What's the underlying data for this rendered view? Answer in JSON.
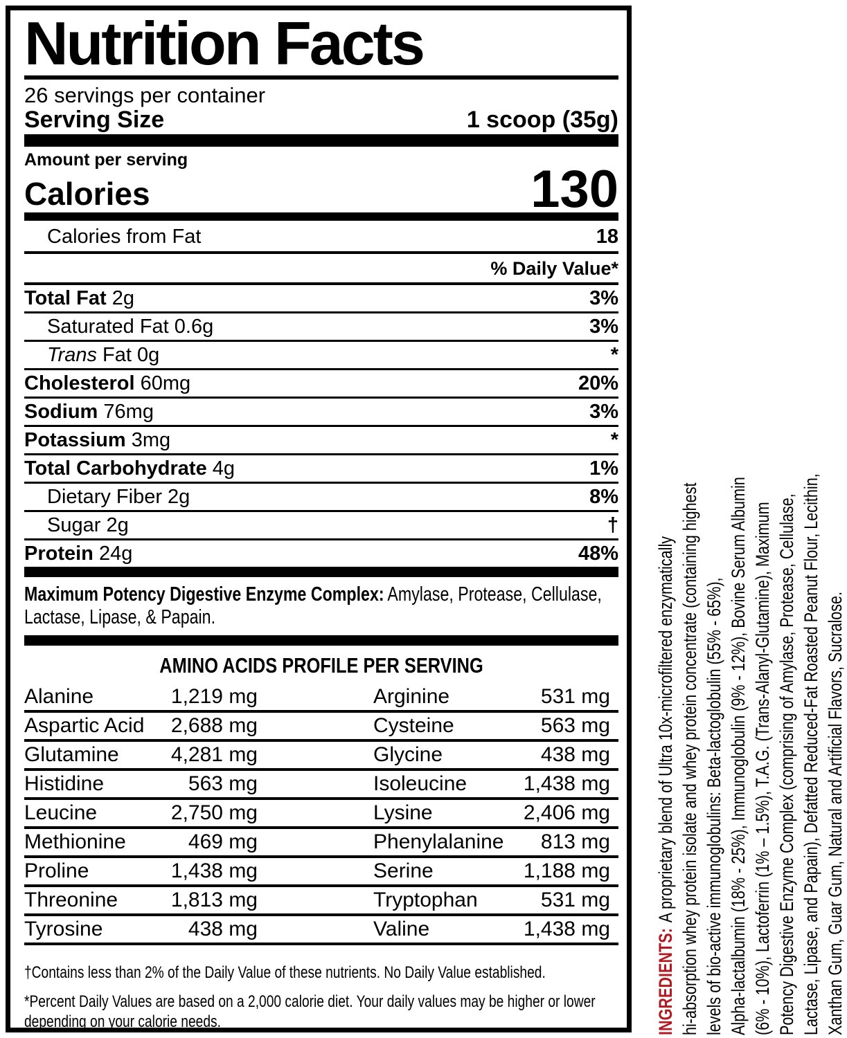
{
  "header": {
    "title": "Nutrition Facts",
    "servings": "26 servings per container",
    "serving_size_label": "Serving Size",
    "serving_size_value": "1 scoop (35g)"
  },
  "calories": {
    "amount_label": "Amount per serving",
    "label": "Calories",
    "value": "130",
    "from_fat_label": "Calories from Fat",
    "from_fat_value": "18"
  },
  "table": {
    "dv_header": "% Daily Value*",
    "rows": [
      {
        "indent": 0,
        "parts": [
          {
            "t": "Total Fat",
            "s": "b"
          },
          {
            "t": " 2g",
            "s": "n"
          }
        ],
        "dv": "3%"
      },
      {
        "indent": 1,
        "parts": [
          {
            "t": "Saturated Fat 0.6g",
            "s": "n"
          }
        ],
        "dv": "3%"
      },
      {
        "indent": 1,
        "parts": [
          {
            "t": "Trans",
            "s": "i"
          },
          {
            "t": " Fat 0g",
            "s": "n"
          }
        ],
        "dv": "*"
      },
      {
        "indent": 0,
        "parts": [
          {
            "t": "Cholesterol",
            "s": "b"
          },
          {
            "t": " 60mg",
            "s": "n"
          }
        ],
        "dv": "20%"
      },
      {
        "indent": 0,
        "parts": [
          {
            "t": "Sodium",
            "s": "b"
          },
          {
            "t": " 76mg",
            "s": "n"
          }
        ],
        "dv": "3%"
      },
      {
        "indent": 0,
        "parts": [
          {
            "t": "Potassium",
            "s": "b"
          },
          {
            "t": " 3mg",
            "s": "n"
          }
        ],
        "dv": "*"
      },
      {
        "indent": 0,
        "parts": [
          {
            "t": "Total Carbohydrate",
            "s": "b"
          },
          {
            "t": " 4g",
            "s": "n"
          }
        ],
        "dv": "1%"
      },
      {
        "indent": 1,
        "parts": [
          {
            "t": "Dietary Fiber 2g",
            "s": "n"
          }
        ],
        "dv": "8%"
      },
      {
        "indent": 1,
        "parts": [
          {
            "t": "Sugar 2g",
            "s": "n"
          }
        ],
        "dv": "†"
      },
      {
        "indent": 0,
        "parts": [
          {
            "t": "Protein",
            "s": "b"
          },
          {
            "t": " 24g",
            "s": "n"
          }
        ],
        "dv": "48%"
      }
    ]
  },
  "enzyme": {
    "bold": "Maximum Potency Digestive Enzyme Complex:",
    "rest": "Amylase, Protease, Cellulase, Lactase, Lipase, & Papain."
  },
  "amino": {
    "heading": "AMINO ACIDS PROFILE PER SERVING",
    "rows": [
      {
        "left_name": "Alanine",
        "left_value": "1,219 mg",
        "right_name": "Arginine",
        "right_value": "531 mg"
      },
      {
        "left_name": "Aspartic Acid",
        "left_value": "2,688 mg",
        "right_name": "Cysteine",
        "right_value": "563 mg"
      },
      {
        "left_name": "Glutamine",
        "left_value": "4,281 mg",
        "right_name": "Glycine",
        "right_value": "438 mg"
      },
      {
        "left_name": "Histidine",
        "left_value": "563 mg",
        "right_name": "Isoleucine",
        "right_value": "1,438 mg"
      },
      {
        "left_name": "Leucine",
        "left_value": "2,750 mg",
        "right_name": "Lysine",
        "right_value": "2,406 mg"
      },
      {
        "left_name": "Methionine",
        "left_value": "469 mg",
        "right_name": "Phenylalanine",
        "right_value": "813 mg"
      },
      {
        "left_name": "Proline",
        "left_value": "1,438 mg",
        "right_name": "Serine",
        "right_value": "1,188 mg"
      },
      {
        "left_name": "Threonine",
        "left_value": "1,813 mg",
        "right_name": "Tryptophan",
        "right_value": "531 mg"
      },
      {
        "left_name": "Tyrosine",
        "left_value": "438 mg",
        "right_name": "Valine",
        "right_value": "1,438 mg"
      }
    ]
  },
  "footnotes": {
    "dagger": "†Contains less than 2% of the Daily Value of these nutrients. No Daily Value established.",
    "asterisk": "*Percent Daily Values are based on a 2,000 calorie diet. Your daily values may be higher or lower depending on your calorie needs."
  },
  "ingredients": {
    "label": "INGREDIENTS:",
    "label_color": "#b11a21",
    "lines": [
      "A proprietary blend of Ultra 10x-microfiltered enzymatically",
      "hi-absorption whey protein isolate and whey protein concentrate (containing highest",
      "levels of bio-active immunoglobulins: Beta-lactoglobulin (55% - 65%),",
      "Alpha-lactalbumin (18% - 25%), Immunoglobulin (9% - 12%), Bovine Serum Albumin",
      "(6% - 10%), Lactoferrin (1% – 1.5%), T.A.G. (Trans-Alanyl-Glutamine), Maximum",
      "Potency Digestive Enzyme Complex (comprising of Amylase, Protease, Cellulase,",
      "Lactase, Lipase, and Papain), Defatted Reduced-Fat Roasted Peanut Flour, Lecithin,",
      "Xanthan Gum, Guar Gum, Natural and Artificial Flavors, Sucralose."
    ]
  }
}
